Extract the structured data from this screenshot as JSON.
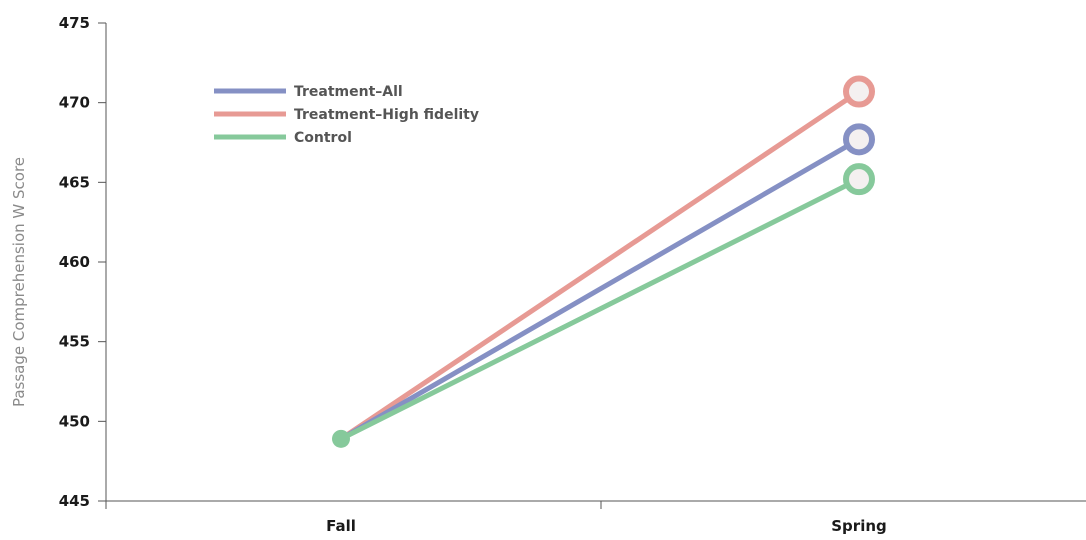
{
  "chart_data": {
    "type": "line",
    "title": "",
    "xlabel": "",
    "ylabel": "Passage Comprehension W Score",
    "categories": [
      "Fall",
      "Spring"
    ],
    "ylim": [
      445,
      475
    ],
    "yticks": [
      "445",
      "450",
      "455",
      "460",
      "465",
      "470",
      "475"
    ],
    "grid": false,
    "legend_position": "top-left",
    "series": [
      {
        "name": "Treatment–All",
        "values": [
          448.9,
          467.7
        ],
        "color": "#8590c4"
      },
      {
        "name": "Treatment–High fidelity",
        "values": [
          448.9,
          470.7
        ],
        "color": "#e79a94"
      },
      {
        "name": "Control",
        "values": [
          448.9,
          465.2
        ],
        "color": "#86c99b"
      }
    ]
  }
}
